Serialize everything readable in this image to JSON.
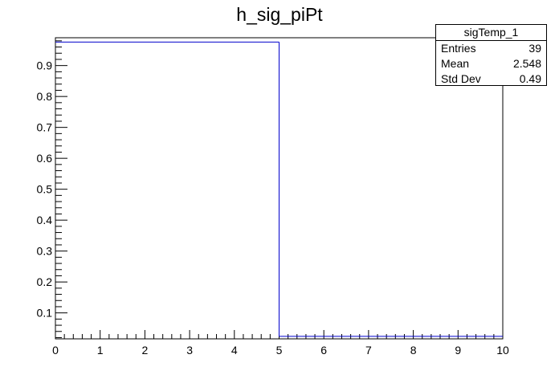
{
  "chart_data": {
    "type": "bar",
    "title": "h_sig_piPt",
    "xlabel": "",
    "ylabel": "",
    "xlim": [
      0,
      10
    ],
    "ylim": [
      0.016,
      0.99
    ],
    "x_ticks": [
      "0",
      "1",
      "2",
      "3",
      "4",
      "5",
      "6",
      "7",
      "8",
      "9",
      "10"
    ],
    "y_ticks": [
      "0.1",
      "0.2",
      "0.3",
      "0.4",
      "0.5",
      "0.6",
      "0.7",
      "0.8",
      "0.9"
    ],
    "bins": [
      {
        "x_low": 0,
        "x_high": 5,
        "value": 0.976
      },
      {
        "x_low": 5,
        "x_high": 10,
        "value": 0.024
      }
    ],
    "line_color": "#0000cc",
    "grid": false,
    "legend": "none"
  },
  "stats": {
    "name": "sigTemp_1",
    "rows": [
      {
        "label": "Entries",
        "value": "39"
      },
      {
        "label": "Mean",
        "value": "2.548"
      },
      {
        "label": "Std Dev",
        "value": "0.49"
      }
    ]
  }
}
